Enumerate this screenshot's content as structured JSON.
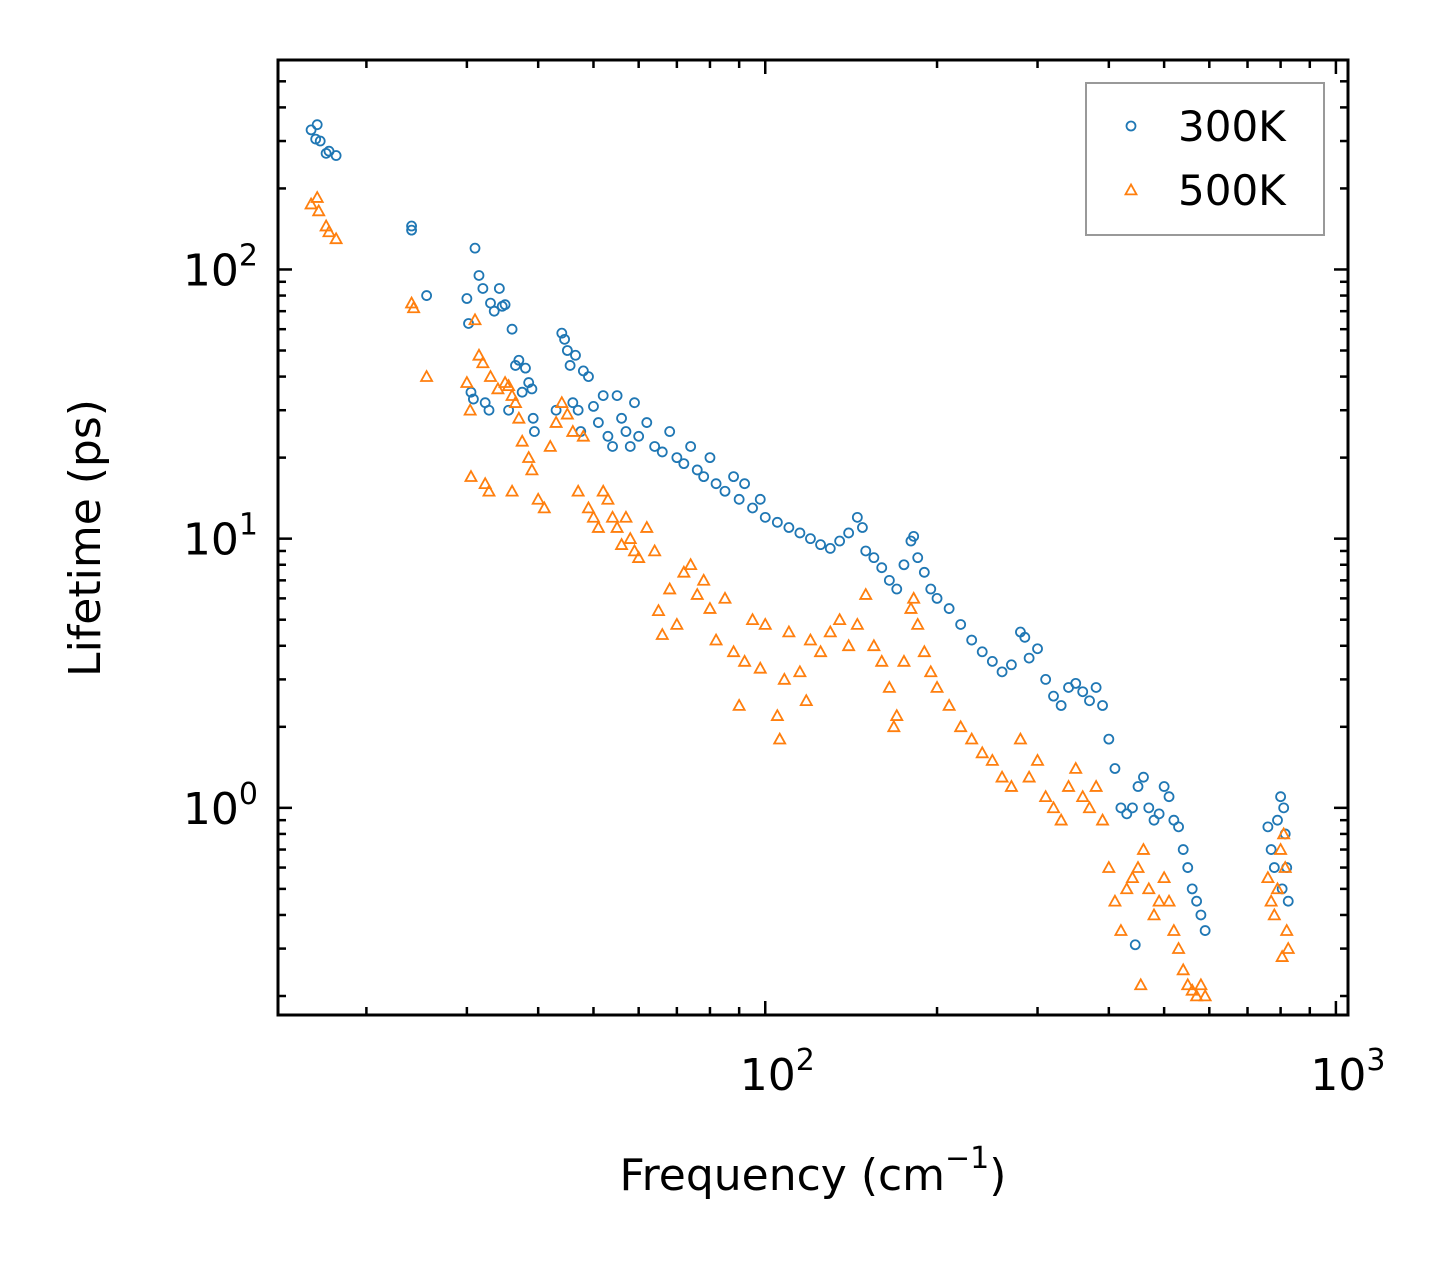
{
  "chart_data": {
    "type": "scatter",
    "title": "",
    "xlabel": "Frequency (cm",
    "xlabel_sup": "−1",
    "xlabel_suffix": ")",
    "ylabel": "Lifetime (ps)",
    "xscale": "log",
    "yscale": "log",
    "xlim": [
      14,
      1050
    ],
    "ylim": [
      0.17,
      600
    ],
    "x_ticks": [
      {
        "value": 100,
        "base": "10",
        "exp": "2"
      },
      {
        "value": 1000,
        "base": "10",
        "exp": "3"
      }
    ],
    "y_ticks": [
      {
        "value": 1,
        "base": "10",
        "exp": "0"
      },
      {
        "value": 10,
        "base": "10",
        "exp": "1"
      },
      {
        "value": 100,
        "base": "10",
        "exp": "2"
      }
    ],
    "legend_position": "top-right",
    "series": [
      {
        "name": "300K",
        "marker": "circle",
        "color": "#1f77b4",
        "points": [
          [
            16.0,
            330
          ],
          [
            16.4,
            345
          ],
          [
            16.3,
            305
          ],
          [
            16.6,
            300
          ],
          [
            17.0,
            270
          ],
          [
            17.2,
            275
          ],
          [
            17.7,
            265
          ],
          [
            24.0,
            145
          ],
          [
            24.0,
            140
          ],
          [
            25.5,
            80
          ],
          [
            30.0,
            78
          ],
          [
            30.2,
            63
          ],
          [
            30.5,
            35
          ],
          [
            30.8,
            33
          ],
          [
            31.0,
            120
          ],
          [
            31.5,
            95
          ],
          [
            32.0,
            85
          ],
          [
            32.3,
            32
          ],
          [
            32.8,
            30
          ],
          [
            33.0,
            75
          ],
          [
            33.5,
            70
          ],
          [
            34.2,
            85
          ],
          [
            34.6,
            73
          ],
          [
            35.0,
            74
          ],
          [
            36.0,
            60
          ],
          [
            35.5,
            30
          ],
          [
            36.5,
            44
          ],
          [
            37.0,
            46
          ],
          [
            37.5,
            35
          ],
          [
            38.0,
            43
          ],
          [
            38.5,
            38
          ],
          [
            39.0,
            36
          ],
          [
            39.2,
            28
          ],
          [
            39.4,
            25
          ],
          [
            43.0,
            30
          ],
          [
            44.0,
            58
          ],
          [
            44.5,
            55
          ],
          [
            45.0,
            50
          ],
          [
            45.5,
            44
          ],
          [
            46.0,
            32
          ],
          [
            46.5,
            48
          ],
          [
            47.0,
            30
          ],
          [
            47.5,
            25
          ],
          [
            48.0,
            42
          ],
          [
            49.0,
            40
          ],
          [
            50.0,
            31
          ],
          [
            51.0,
            27
          ],
          [
            52.0,
            34
          ],
          [
            53.0,
            24
          ],
          [
            54.0,
            22
          ],
          [
            55.0,
            34
          ],
          [
            56.0,
            28
          ],
          [
            57.0,
            25
          ],
          [
            58.0,
            22
          ],
          [
            59.0,
            32
          ],
          [
            60.0,
            24
          ],
          [
            62.0,
            27
          ],
          [
            64.0,
            22
          ],
          [
            66.0,
            21
          ],
          [
            68.0,
            25
          ],
          [
            70.0,
            20
          ],
          [
            72.0,
            19
          ],
          [
            74.0,
            22
          ],
          [
            76.0,
            18
          ],
          [
            78.0,
            17
          ],
          [
            80.0,
            20
          ],
          [
            82.0,
            16
          ],
          [
            85.0,
            15
          ],
          [
            88.0,
            17
          ],
          [
            90.0,
            14
          ],
          [
            92.0,
            16
          ],
          [
            95.0,
            13
          ],
          [
            98.0,
            14
          ],
          [
            100.0,
            12
          ],
          [
            105.0,
            11.5
          ],
          [
            110.0,
            11
          ],
          [
            115.0,
            10.5
          ],
          [
            120.0,
            10
          ],
          [
            125.0,
            9.5
          ],
          [
            130.0,
            9.2
          ],
          [
            135.0,
            9.8
          ],
          [
            140.0,
            10.5
          ],
          [
            145.0,
            12
          ],
          [
            148.0,
            11
          ],
          [
            150.0,
            9.0
          ],
          [
            155.0,
            8.5
          ],
          [
            160.0,
            7.8
          ],
          [
            165.0,
            7.0
          ],
          [
            170.0,
            6.5
          ],
          [
            175.0,
            8.0
          ],
          [
            180.0,
            9.8
          ],
          [
            182.0,
            10.2
          ],
          [
            185.0,
            8.5
          ],
          [
            190.0,
            7.5
          ],
          [
            195.0,
            6.5
          ],
          [
            200.0,
            6.0
          ],
          [
            210.0,
            5.5
          ],
          [
            220.0,
            4.8
          ],
          [
            230.0,
            4.2
          ],
          [
            240.0,
            3.8
          ],
          [
            250.0,
            3.5
          ],
          [
            260.0,
            3.2
          ],
          [
            270.0,
            3.4
          ],
          [
            280.0,
            4.5
          ],
          [
            285.0,
            4.3
          ],
          [
            290.0,
            3.6
          ],
          [
            300.0,
            3.9
          ],
          [
            310.0,
            3.0
          ],
          [
            320.0,
            2.6
          ],
          [
            330.0,
            2.4
          ],
          [
            340.0,
            2.8
          ],
          [
            350.0,
            2.9
          ],
          [
            360.0,
            2.7
          ],
          [
            370.0,
            2.5
          ],
          [
            380.0,
            2.8
          ],
          [
            390.0,
            2.4
          ],
          [
            400.0,
            1.8
          ],
          [
            410.0,
            1.4
          ],
          [
            420.0,
            1.0
          ],
          [
            430.0,
            0.95
          ],
          [
            440.0,
            1.0
          ],
          [
            450.0,
            1.2
          ],
          [
            460.0,
            1.3
          ],
          [
            470.0,
            1.0
          ],
          [
            480.0,
            0.9
          ],
          [
            490.0,
            0.95
          ],
          [
            500.0,
            1.2
          ],
          [
            510.0,
            1.1
          ],
          [
            520.0,
            0.9
          ],
          [
            530.0,
            0.85
          ],
          [
            540.0,
            0.7
          ],
          [
            550.0,
            0.6
          ],
          [
            560.0,
            0.5
          ],
          [
            570.0,
            0.45
          ],
          [
            580.0,
            0.4
          ],
          [
            590.0,
            0.35
          ],
          [
            445.0,
            0.31
          ],
          [
            760.0,
            0.85
          ],
          [
            770.0,
            0.7
          ],
          [
            780.0,
            0.6
          ],
          [
            790.0,
            0.9
          ],
          [
            800.0,
            1.1
          ],
          [
            810.0,
            1.0
          ],
          [
            815.0,
            0.8
          ],
          [
            820.0,
            0.6
          ],
          [
            825.0,
            0.45
          ],
          [
            805.0,
            0.5
          ]
        ]
      },
      {
        "name": "500K",
        "marker": "triangle",
        "color": "#ff7f0e",
        "points": [
          [
            16.0,
            175
          ],
          [
            16.4,
            185
          ],
          [
            16.5,
            165
          ],
          [
            17.0,
            145
          ],
          [
            17.2,
            138
          ],
          [
            17.7,
            130
          ],
          [
            24.0,
            75
          ],
          [
            24.2,
            72
          ],
          [
            25.5,
            40
          ],
          [
            30.0,
            38
          ],
          [
            30.4,
            30
          ],
          [
            30.5,
            17
          ],
          [
            31.0,
            65
          ],
          [
            31.5,
            48
          ],
          [
            32.0,
            45
          ],
          [
            32.3,
            16
          ],
          [
            32.8,
            15
          ],
          [
            33.0,
            40
          ],
          [
            34.0,
            36
          ],
          [
            35.0,
            38
          ],
          [
            35.5,
            37
          ],
          [
            36.0,
            34
          ],
          [
            36.5,
            32
          ],
          [
            36.0,
            15
          ],
          [
            37.0,
            28
          ],
          [
            37.5,
            23
          ],
          [
            38.5,
            20
          ],
          [
            39.0,
            18
          ],
          [
            40.0,
            14
          ],
          [
            41.0,
            13
          ],
          [
            42.0,
            22
          ],
          [
            43.0,
            27
          ],
          [
            44.0,
            32
          ],
          [
            45.0,
            29
          ],
          [
            46.0,
            25
          ],
          [
            47.0,
            15
          ],
          [
            48.0,
            24
          ],
          [
            49.0,
            13
          ],
          [
            50.0,
            12
          ],
          [
            51.0,
            11
          ],
          [
            52.0,
            15
          ],
          [
            53.0,
            14
          ],
          [
            54.0,
            12
          ],
          [
            55.0,
            11
          ],
          [
            56.0,
            9.5
          ],
          [
            57.0,
            12
          ],
          [
            58.0,
            10
          ],
          [
            59.0,
            9
          ],
          [
            60.0,
            8.5
          ],
          [
            62.0,
            11
          ],
          [
            64.0,
            9
          ],
          [
            65.0,
            5.4
          ],
          [
            66.0,
            4.4
          ],
          [
            68.0,
            6.5
          ],
          [
            70.0,
            4.8
          ],
          [
            72.0,
            7.5
          ],
          [
            74.0,
            8.0
          ],
          [
            76.0,
            6.2
          ],
          [
            78.0,
            7.0
          ],
          [
            80.0,
            5.5
          ],
          [
            82.0,
            4.2
          ],
          [
            85.0,
            6.0
          ],
          [
            88.0,
            3.8
          ],
          [
            90.0,
            2.4
          ],
          [
            92.0,
            3.5
          ],
          [
            95.0,
            5.0
          ],
          [
            98.0,
            3.3
          ],
          [
            100.0,
            4.8
          ],
          [
            105.0,
            2.2
          ],
          [
            106.0,
            1.8
          ],
          [
            108.0,
            3.0
          ],
          [
            110.0,
            4.5
          ],
          [
            115.0,
            3.2
          ],
          [
            118.0,
            2.5
          ],
          [
            120.0,
            4.2
          ],
          [
            125.0,
            3.8
          ],
          [
            130.0,
            4.5
          ],
          [
            135.0,
            5.0
          ],
          [
            140.0,
            4.0
          ],
          [
            145.0,
            4.8
          ],
          [
            150.0,
            6.2
          ],
          [
            155.0,
            4.0
          ],
          [
            160.0,
            3.5
          ],
          [
            165.0,
            2.8
          ],
          [
            168.0,
            2.0
          ],
          [
            170.0,
            2.2
          ],
          [
            175.0,
            3.5
          ],
          [
            180.0,
            5.5
          ],
          [
            182.0,
            6.0
          ],
          [
            185.0,
            4.8
          ],
          [
            190.0,
            3.8
          ],
          [
            195.0,
            3.2
          ],
          [
            200.0,
            2.8
          ],
          [
            210.0,
            2.4
          ],
          [
            220.0,
            2.0
          ],
          [
            230.0,
            1.8
          ],
          [
            240.0,
            1.6
          ],
          [
            250.0,
            1.5
          ],
          [
            260.0,
            1.3
          ],
          [
            270.0,
            1.2
          ],
          [
            280.0,
            1.8
          ],
          [
            290.0,
            1.3
          ],
          [
            300.0,
            1.5
          ],
          [
            310.0,
            1.1
          ],
          [
            320.0,
            1.0
          ],
          [
            330.0,
            0.9
          ],
          [
            340.0,
            1.2
          ],
          [
            350.0,
            1.4
          ],
          [
            360.0,
            1.1
          ],
          [
            370.0,
            1.0
          ],
          [
            380.0,
            1.2
          ],
          [
            390.0,
            0.9
          ],
          [
            400.0,
            0.6
          ],
          [
            410.0,
            0.45
          ],
          [
            420.0,
            0.35
          ],
          [
            430.0,
            0.5
          ],
          [
            440.0,
            0.55
          ],
          [
            450.0,
            0.6
          ],
          [
            455.0,
            0.22
          ],
          [
            460.0,
            0.7
          ],
          [
            470.0,
            0.5
          ],
          [
            480.0,
            0.4
          ],
          [
            490.0,
            0.45
          ],
          [
            500.0,
            0.55
          ],
          [
            510.0,
            0.45
          ],
          [
            520.0,
            0.35
          ],
          [
            530.0,
            0.3
          ],
          [
            540.0,
            0.25
          ],
          [
            550.0,
            0.22
          ],
          [
            560.0,
            0.21
          ],
          [
            570.0,
            0.2
          ],
          [
            580.0,
            0.22
          ],
          [
            590.0,
            0.2
          ],
          [
            760.0,
            0.55
          ],
          [
            770.0,
            0.45
          ],
          [
            780.0,
            0.4
          ],
          [
            790.0,
            0.5
          ],
          [
            800.0,
            0.7
          ],
          [
            810.0,
            0.8
          ],
          [
            815.0,
            0.6
          ],
          [
            820.0,
            0.35
          ],
          [
            825.0,
            0.3
          ],
          [
            805.0,
            0.28
          ]
        ]
      }
    ]
  }
}
